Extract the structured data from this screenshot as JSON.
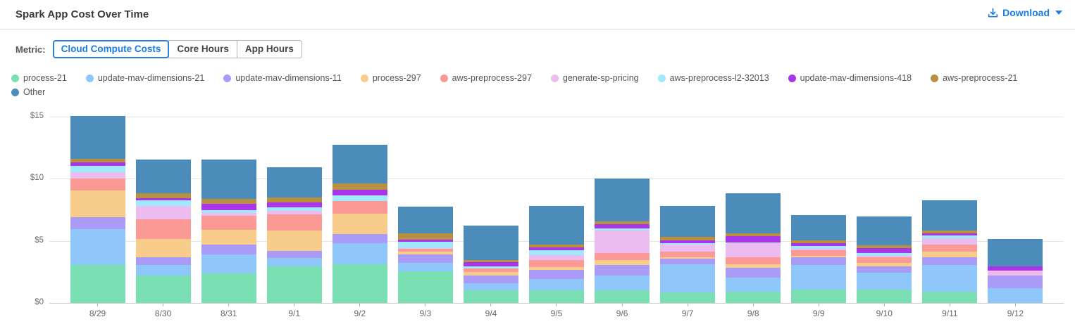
{
  "header": {
    "title": "Spark App Cost Over Time",
    "download_label": "Download"
  },
  "icons": {
    "download": "tray-with-down-arrow",
    "caret": "caret-down-triangle"
  },
  "colors": {
    "accent_blue": "#1b7ce1",
    "axis_text": "#6b6b6b",
    "gridline": "#e3e3e3"
  },
  "metric": {
    "label": "Metric:",
    "options": [
      {
        "label": "Cloud Compute Costs",
        "selected": true
      },
      {
        "label": "Core Hours",
        "selected": false
      },
      {
        "label": "App Hours",
        "selected": false
      }
    ]
  },
  "chart_data": {
    "type": "bar",
    "stacked": true,
    "title": "Spark App Cost Over Time",
    "xlabel": "",
    "ylabel": "",
    "ylim": [
      0,
      15
    ],
    "yticks": [
      0,
      5,
      10,
      15
    ],
    "ytick_labels": [
      "$0",
      "$5",
      "$10",
      "$15"
    ],
    "grid": true,
    "legend_position": "top",
    "currency_prefix": "$",
    "categories": [
      "8/29",
      "8/30",
      "8/31",
      "9/1",
      "9/2",
      "9/3",
      "9/4",
      "9/5",
      "9/6",
      "9/7",
      "9/8",
      "9/9",
      "9/10",
      "9/11",
      "9/12"
    ],
    "series": [
      {
        "name": "process-21",
        "color": "#7adfb2",
        "values": [
          3.08,
          2.21,
          2.38,
          2.94,
          3.11,
          2.55,
          1.0,
          1.04,
          1.0,
          0.85,
          0.91,
          1.08,
          1.08,
          0.91,
          0
        ]
      },
      {
        "name": "update-mav-dimensions-21",
        "color": "#8fc7fb",
        "values": [
          2.85,
          0.85,
          1.52,
          0.68,
          1.7,
          0.68,
          0.57,
          0.9,
          1.21,
          2.26,
          1.13,
          1.98,
          1.35,
          2.15,
          1.19
        ]
      },
      {
        "name": "update-mav-dimensions-11",
        "color": "#aa9bf7",
        "values": [
          1.0,
          0.62,
          0.8,
          0.57,
          0.73,
          0.67,
          0.62,
          0.72,
          0.85,
          0.46,
          0.79,
          0.62,
          0.51,
          0.62,
          1.02
        ]
      },
      {
        "name": "process-297",
        "color": "#f8cc8b",
        "values": [
          2.1,
          1.47,
          1.19,
          1.64,
          1.66,
          0.22,
          0.32,
          0.23,
          0.4,
          0.11,
          0.28,
          0.11,
          0.29,
          0.45,
          0
        ]
      },
      {
        "name": "aws-preprocess-297",
        "color": "#fb9a94",
        "values": [
          1.0,
          1.58,
          1.13,
          1.3,
          1.01,
          0.24,
          0.28,
          0.54,
          0.53,
          0.45,
          0.57,
          0.46,
          0.45,
          0.57,
          0
        ]
      },
      {
        "name": "generate-sp-pricing",
        "color": "#ecbcf0",
        "values": [
          0.5,
          1.08,
          0.22,
          0.28,
          0,
          0.09,
          0,
          0.4,
          1.81,
          0.57,
          1.13,
          0.11,
          0.11,
          0.51,
          0.39
        ]
      },
      {
        "name": "aws-preprocess-l2-32013",
        "color": "#a0e9fc",
        "values": [
          0.5,
          0.45,
          0.23,
          0.29,
          0.47,
          0.51,
          0.15,
          0.39,
          0.17,
          0.11,
          0.06,
          0.22,
          0.23,
          0.22,
          0
        ]
      },
      {
        "name": "update-mav-dimensions-418",
        "color": "#a935ea",
        "values": [
          0.3,
          0.17,
          0.51,
          0.4,
          0.47,
          0.17,
          0.36,
          0.23,
          0.34,
          0.23,
          0.51,
          0.23,
          0.39,
          0.17,
          0.34
        ]
      },
      {
        "name": "aws-preprocess-21",
        "color": "#b9903f",
        "values": [
          0.28,
          0.4,
          0.4,
          0.4,
          0.49,
          0.51,
          0.15,
          0.23,
          0.28,
          0.28,
          0.23,
          0.23,
          0.23,
          0.23,
          0
        ]
      },
      {
        "name": "Other",
        "color": "#4c8cba",
        "values": [
          3.44,
          2.71,
          3.16,
          2.42,
          3.09,
          2.11,
          2.77,
          3.12,
          3.41,
          2.49,
          3.22,
          2.03,
          2.32,
          2.43,
          2.21
        ]
      }
    ]
  }
}
